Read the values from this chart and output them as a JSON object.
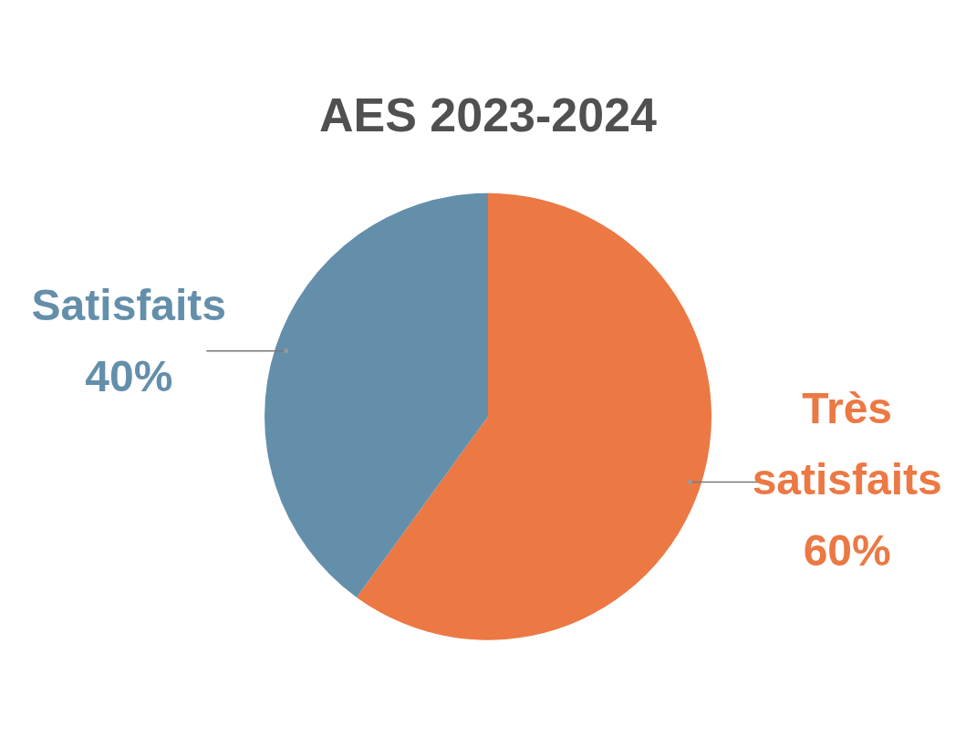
{
  "chart_data": {
    "type": "pie",
    "title": "AES 2023-2024",
    "categories": [
      "Très satisfaits",
      "Satisfaits"
    ],
    "values": [
      60,
      40
    ],
    "value_labels": [
      "60%",
      "40%"
    ],
    "colors": [
      "#ec7843",
      "#648fab"
    ],
    "legend": false
  }
}
